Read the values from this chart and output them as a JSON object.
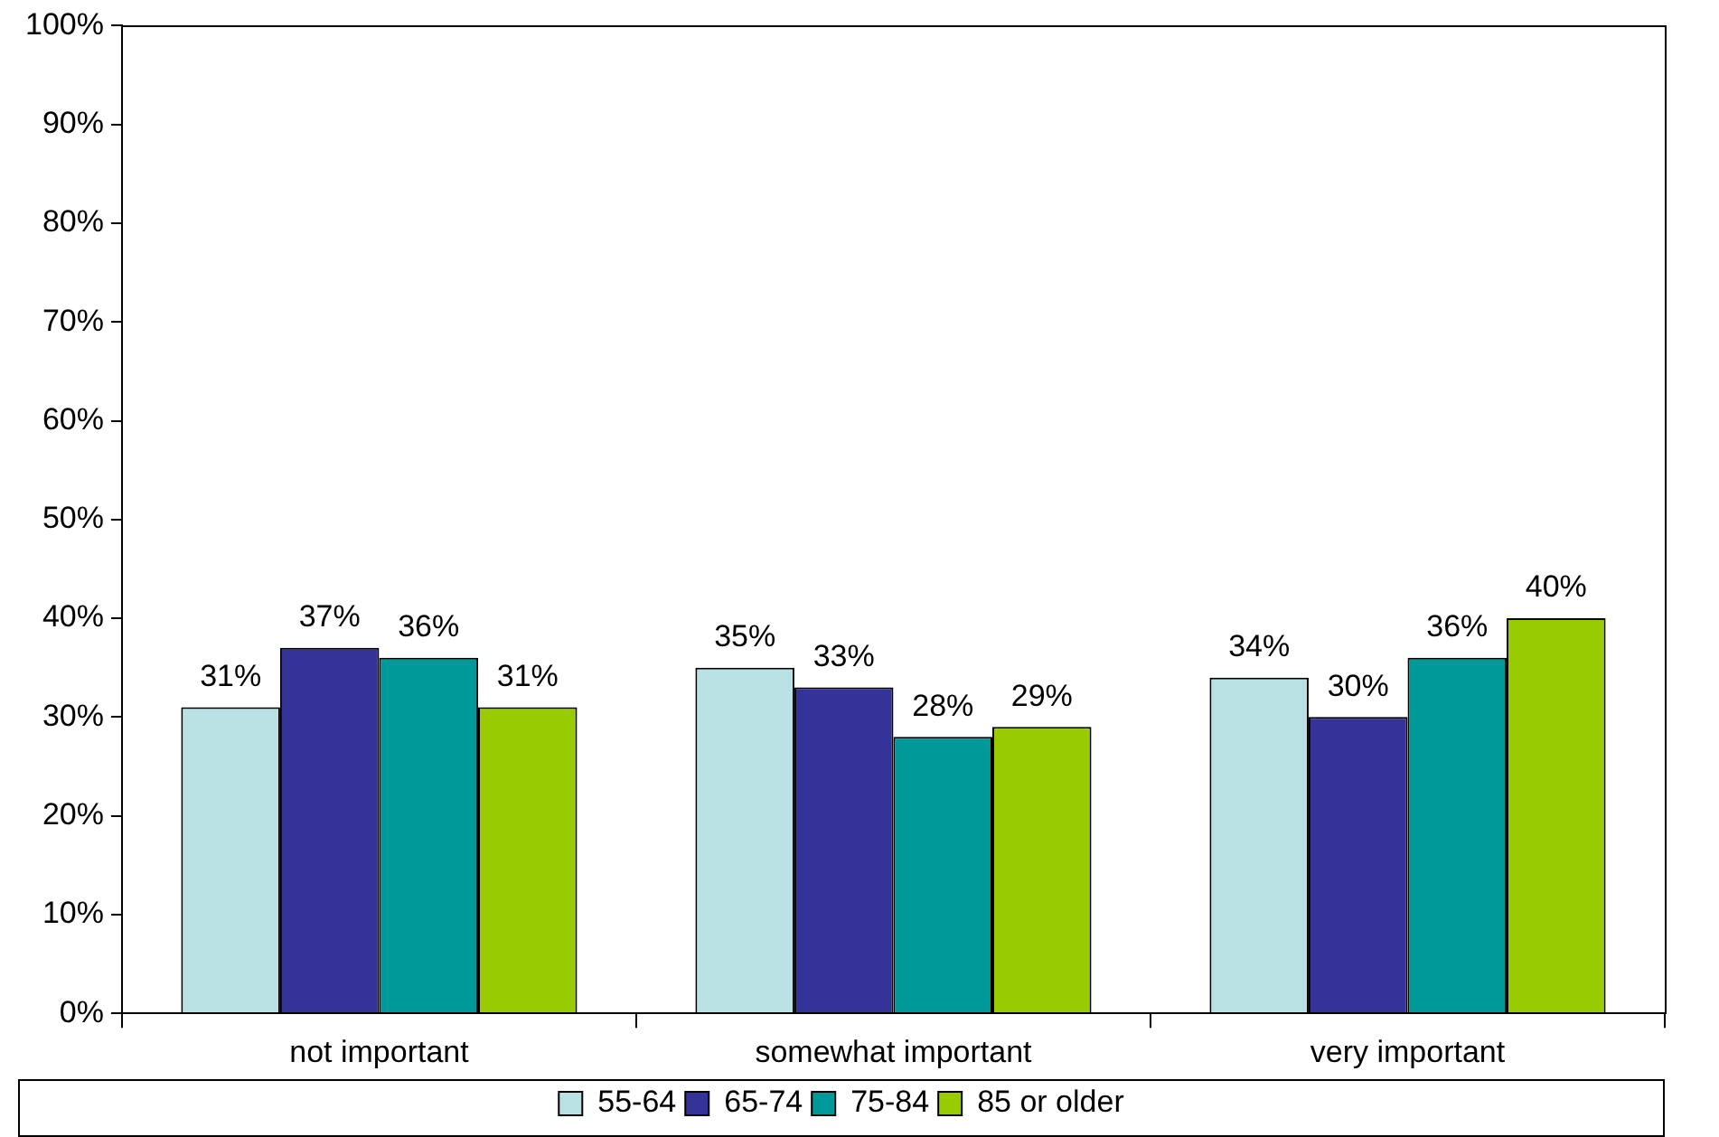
{
  "chart_data": {
    "type": "bar",
    "categories": [
      "not important",
      "somewhat important",
      "very important"
    ],
    "series": [
      {
        "name": "55-64",
        "color": "#b9e0e3",
        "values": [
          31,
          35,
          34
        ],
        "value_labels": [
          "31%",
          "35%",
          "34%"
        ]
      },
      {
        "name": "65-74",
        "color": "#333399",
        "values": [
          37,
          33,
          30
        ],
        "value_labels": [
          "37%",
          "33%",
          "30%"
        ]
      },
      {
        "name": "75-84",
        "color": "#009999",
        "values": [
          36,
          28,
          36
        ],
        "value_labels": [
          "36%",
          "28%",
          "36%"
        ]
      },
      {
        "name": "85 or older",
        "color": "#99cc00",
        "values": [
          31,
          29,
          40
        ],
        "value_labels": [
          "31%",
          "29%",
          "40%"
        ]
      }
    ],
    "ylim": [
      0,
      100
    ],
    "yticks": [
      {
        "value": 0,
        "label": "0%"
      },
      {
        "value": 10,
        "label": "10%"
      },
      {
        "value": 20,
        "label": "20%"
      },
      {
        "value": 30,
        "label": "30%"
      },
      {
        "value": 40,
        "label": "40%"
      },
      {
        "value": 50,
        "label": "50%"
      },
      {
        "value": 60,
        "label": "60%"
      },
      {
        "value": 70,
        "label": "70%"
      },
      {
        "value": 80,
        "label": "80%"
      },
      {
        "value": 90,
        "label": "90%"
      },
      {
        "value": 100,
        "label": "100%"
      }
    ],
    "grid": false,
    "legend": "bottom"
  }
}
